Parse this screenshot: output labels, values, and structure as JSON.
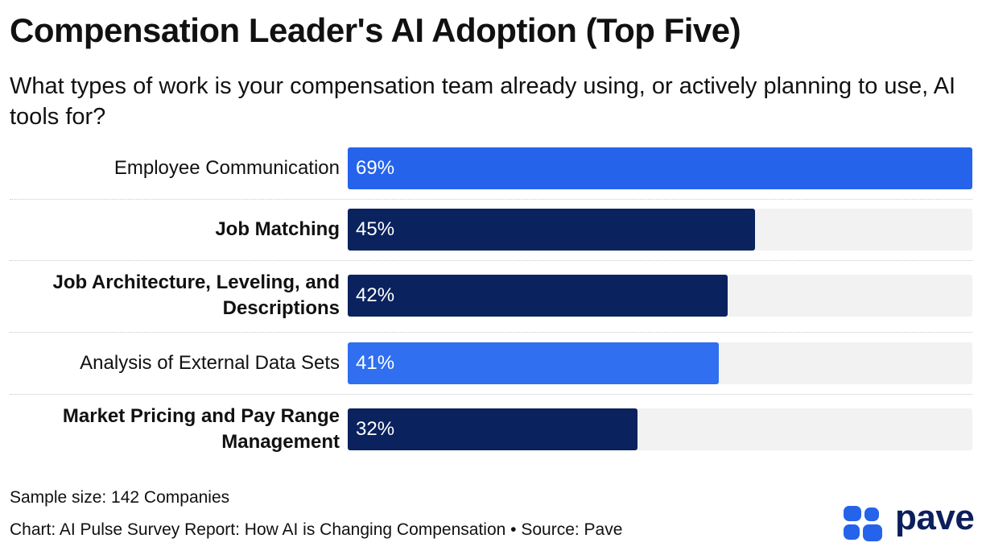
{
  "title": "Compensation Leader's AI Adoption (Top Five)",
  "subtitle": "What types of work is your compensation team already using, or actively planning to use, AI tools for?",
  "chart_data": {
    "type": "bar",
    "orientation": "horizontal",
    "categories": [
      "Employee Communication",
      "Job Matching",
      "Job Architecture, Leveling, and Descriptions",
      "Analysis of External Data Sets",
      "Market Pricing and Pay Range Management"
    ],
    "values": [
      69,
      45,
      42,
      41,
      32
    ],
    "value_labels": [
      "69%",
      "45%",
      "42%",
      "41%",
      "32%"
    ],
    "bold_categories": [
      false,
      true,
      true,
      false,
      true
    ],
    "bar_colors": [
      "#2563eb",
      "#0a225e",
      "#0a225e",
      "#2f6ff0",
      "#0a225e"
    ],
    "xlim": [
      0,
      69
    ],
    "unit": "%",
    "track_color": "#f2f2f2"
  },
  "footer": {
    "sample": "Sample size: 142 Companies",
    "source": "Chart: AI Pulse Survey Report: How AI is Changing Compensation • Source: Pave"
  },
  "logo": {
    "text": "pave",
    "icon": "pave-logo-icon",
    "color": "#0b1f5c",
    "icon_color": "#2563eb"
  }
}
